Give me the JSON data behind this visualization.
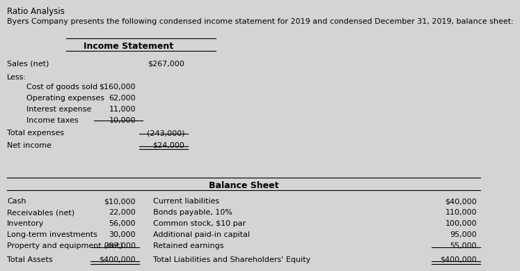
{
  "title": "Ratio Analysis",
  "subtitle": "Byers Company presents the following condensed income statement for 2019 and condensed December 31, 2019, balance sheet:",
  "income_statement_header": "Income Statement",
  "income_rows": [
    {
      "label": "Sales (net)",
      "col1": "",
      "col2": "$267,000",
      "indent": 0
    },
    {
      "label": "Less:",
      "col1": "",
      "col2": "",
      "indent": 0
    },
    {
      "label": "Cost of goods sold",
      "col1": "$160,000",
      "col2": "",
      "indent": 1
    },
    {
      "label": "Operating expenses",
      "col1": "62,000",
      "col2": "",
      "indent": 1
    },
    {
      "label": "Interest expense",
      "col1": "11,000",
      "col2": "",
      "indent": 1
    },
    {
      "label": "Income taxes",
      "col1": "10,000",
      "col2": "",
      "indent": 1
    },
    {
      "label": "Total expenses",
      "col1": "",
      "col2": "(243,000)",
      "indent": 0
    },
    {
      "label": "Net income",
      "col1": "",
      "col2": "$24,000",
      "indent": 0
    }
  ],
  "balance_sheet_header": "Balance Sheet",
  "balance_left": [
    {
      "label": "Cash",
      "value": "$10,000"
    },
    {
      "label": "Receivables (net)",
      "value": "22,000"
    },
    {
      "label": "Inventory",
      "value": "56,000"
    },
    {
      "label": "Long-term investments",
      "value": "30,000"
    },
    {
      "label": "Property and equipment (net)",
      "value": "282,000"
    },
    {
      "label": "Total Assets",
      "value": "$400,000"
    }
  ],
  "balance_right": [
    {
      "label": "Current liabilities",
      "value": "$40,000"
    },
    {
      "label": "Bonds payable, 10%",
      "value": "110,000"
    },
    {
      "label": "Common stock, $10 par",
      "value": "100,000"
    },
    {
      "label": "Additional paid-in capital",
      "value": "95,000"
    },
    {
      "label": "Retained earnings",
      "value": "55,000"
    },
    {
      "label": "Total Liabilities and Shareholders' Equity",
      "value": "$400,000"
    }
  ],
  "bg_color": "#d4d4d4",
  "text_color": "#000000",
  "font_size": 8.0,
  "header_font_size": 9.0
}
